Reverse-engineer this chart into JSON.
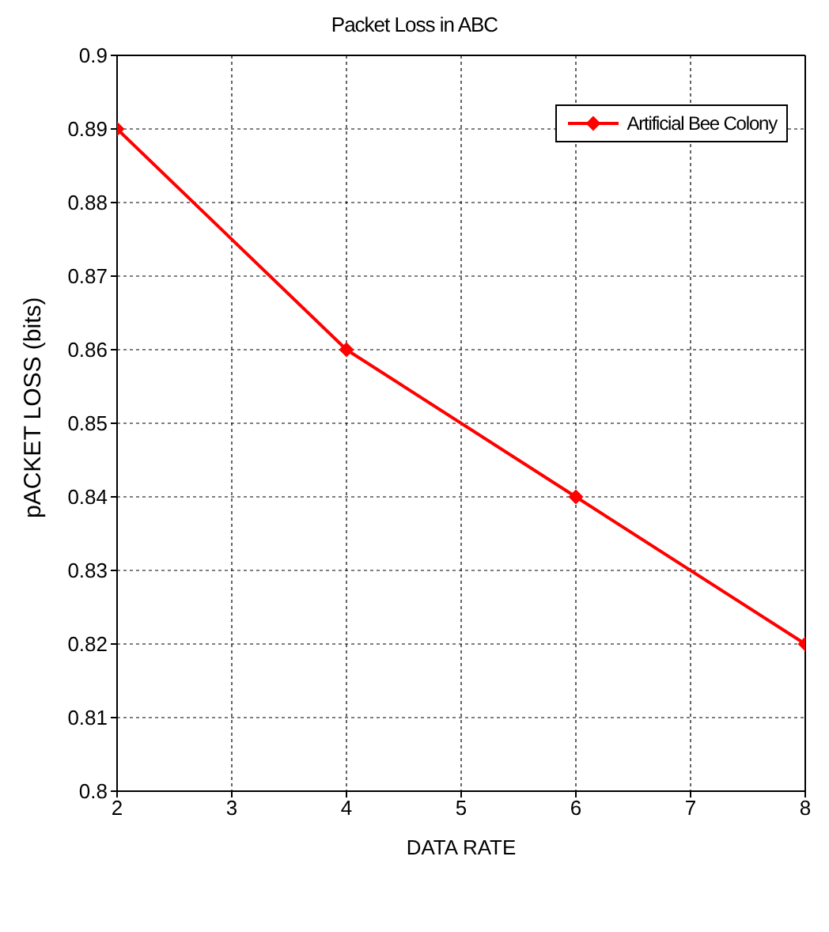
{
  "chart_data": {
    "type": "line",
    "title": "Packet Loss in ABC",
    "xlabel": "DATA RATE",
    "ylabel": "pACKET LOSS (bits)",
    "x": [
      2,
      4,
      6,
      8
    ],
    "series": [
      {
        "name": "Artificial Bee Colony",
        "color": "#ff0000",
        "values": [
          0.89,
          0.86,
          0.84,
          0.82
        ]
      }
    ],
    "xlim": [
      2,
      8
    ],
    "xticks": [
      2,
      3,
      4,
      5,
      6,
      7,
      8
    ],
    "ylim": [
      0.8,
      0.9
    ],
    "yticks": [
      0.8,
      0.81,
      0.82,
      0.83,
      0.84,
      0.85,
      0.86,
      0.87,
      0.88,
      0.89,
      0.9
    ],
    "grid": true,
    "legend": "top right",
    "marker": "diamond",
    "line_style": "solid"
  }
}
